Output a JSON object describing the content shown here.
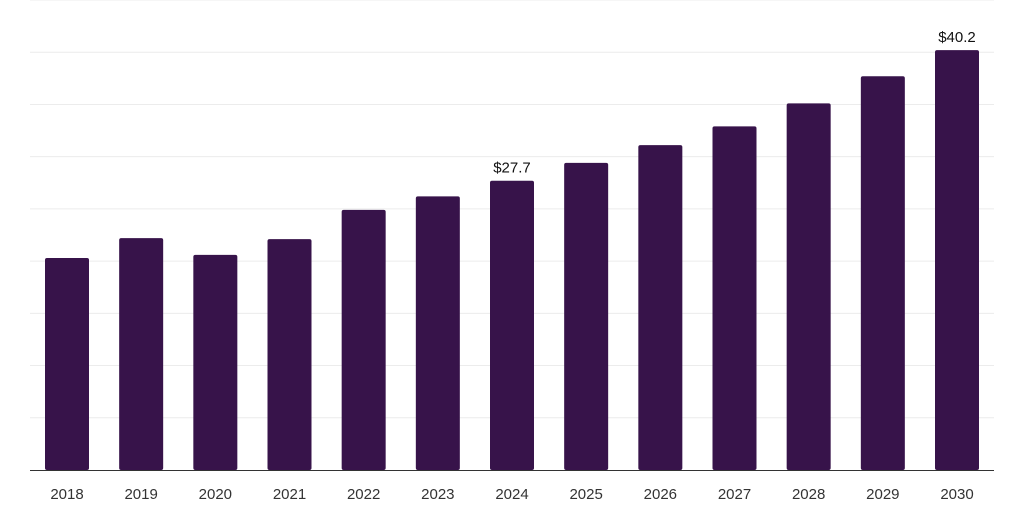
{
  "colors": {
    "bar": "#37134a",
    "grid": "#ececec",
    "axis": "#333333",
    "text": "#333333"
  },
  "chart_data": {
    "type": "bar",
    "categories": [
      "2018",
      "2019",
      "2020",
      "2021",
      "2022",
      "2023",
      "2024",
      "2025",
      "2026",
      "2027",
      "2028",
      "2029",
      "2030"
    ],
    "values": [
      20.3,
      22.2,
      20.6,
      22.1,
      24.9,
      26.2,
      27.7,
      29.4,
      31.1,
      32.9,
      35.1,
      37.7,
      40.2
    ],
    "data_labels": [
      {
        "category": "2024",
        "text": "$27.7"
      },
      {
        "category": "2030",
        "text": "$40.2"
      }
    ],
    "title": "",
    "xlabel": "",
    "ylabel": "",
    "ylim": [
      0,
      45
    ],
    "grid": true,
    "legend": "none"
  }
}
